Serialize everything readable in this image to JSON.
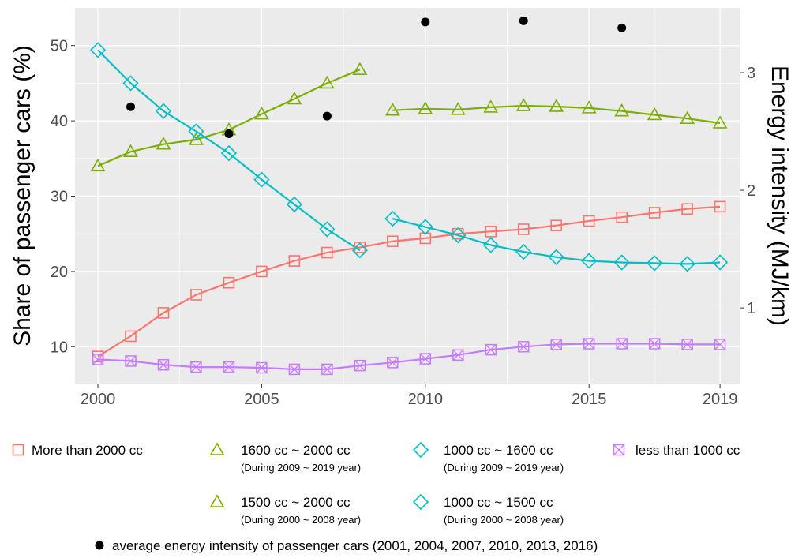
{
  "chart_data": {
    "type": "line",
    "ylabel": "Share of passenger cars (%)",
    "y2label": "Energy intensity (MJ/km)",
    "xlim": [
      1999.3,
      2019.6
    ],
    "ylim": [
      5,
      55
    ],
    "y2lim": [
      0.35,
      3.55
    ],
    "x_ticks": [
      2000,
      2005,
      2010,
      2015,
      2019
    ],
    "y_ticks": [
      10,
      20,
      30,
      40,
      50
    ],
    "y2_ticks": [
      1,
      2,
      3
    ],
    "grid": true,
    "legend_position": "bottom",
    "series": [
      {
        "name": "More than 2000 cc",
        "color": "#f8766d",
        "marker": "square",
        "x": [
          2000,
          2001,
          2002,
          2003,
          2004,
          2005,
          2006,
          2007,
          2008,
          2009,
          2010,
          2011,
          2012,
          2013,
          2014,
          2015,
          2016,
          2017,
          2018,
          2019
        ],
        "values": [
          8.7,
          11.4,
          14.5,
          16.9,
          18.5,
          20.0,
          21.4,
          22.5,
          23.2,
          24.0,
          24.4,
          25.0,
          25.3,
          25.6,
          26.1,
          26.7,
          27.2,
          27.8,
          28.3,
          28.6
        ]
      },
      {
        "name": "1500 cc ~ 2000 cc",
        "sublabel": "(During 2000 ~ 2008 year)",
        "color": "#7cae00",
        "marker": "triangle",
        "x": [
          2000,
          2001,
          2002,
          2003,
          2004,
          2005,
          2006,
          2007,
          2008
        ],
        "values": [
          34.0,
          35.9,
          36.9,
          37.5,
          38.8,
          40.9,
          42.9,
          45.0,
          46.8
        ]
      },
      {
        "name": "1600 cc ~ 2000 cc",
        "sublabel": "(During 2009 ~ 2019 year)",
        "color": "#7cae00",
        "marker": "triangle",
        "x": [
          2009,
          2010,
          2011,
          2012,
          2013,
          2014,
          2015,
          2016,
          2017,
          2018,
          2019
        ],
        "values": [
          41.4,
          41.6,
          41.5,
          41.8,
          42.0,
          41.9,
          41.7,
          41.3,
          40.8,
          40.3,
          39.7
        ]
      },
      {
        "name": "1000 cc ~ 1500 cc",
        "sublabel": "(During 2000 ~ 2008 year)",
        "color": "#00bfc4",
        "marker": "diamond",
        "x": [
          2000,
          2001,
          2002,
          2003,
          2004,
          2005,
          2006,
          2007,
          2008
        ],
        "values": [
          49.4,
          45.0,
          41.3,
          38.6,
          35.7,
          32.2,
          28.9,
          25.6,
          22.8
        ]
      },
      {
        "name": "1000 cc ~ 1600 cc",
        "sublabel": "(During 2009 ~ 2019 year)",
        "color": "#00bfc4",
        "marker": "diamond",
        "x": [
          2009,
          2010,
          2011,
          2012,
          2013,
          2014,
          2015,
          2016,
          2017,
          2018,
          2019
        ],
        "values": [
          27.0,
          25.9,
          24.8,
          23.5,
          22.6,
          21.9,
          21.4,
          21.2,
          21.1,
          21.0,
          21.2
        ]
      },
      {
        "name": "less than 1000 cc",
        "color": "#c77cff",
        "marker": "square-x",
        "x": [
          2000,
          2001,
          2002,
          2003,
          2004,
          2005,
          2006,
          2007,
          2008,
          2009,
          2010,
          2011,
          2012,
          2013,
          2014,
          2015,
          2016,
          2017,
          2018,
          2019
        ],
        "values": [
          8.3,
          8.1,
          7.6,
          7.3,
          7.3,
          7.2,
          7.0,
          7.0,
          7.5,
          7.9,
          8.4,
          8.9,
          9.6,
          10.0,
          10.3,
          10.4,
          10.4,
          10.4,
          10.3,
          10.3
        ]
      },
      {
        "name": "average energy intensity of passenger cars (2001, 2004, 2007, 2010, 2013, 2016)",
        "color": "#000000",
        "marker": "dot",
        "axis": "right",
        "x": [
          2001,
          2004,
          2007,
          2010,
          2013,
          2016
        ],
        "values": [
          2.71,
          2.48,
          2.63,
          3.43,
          3.44,
          3.38
        ]
      }
    ],
    "legend": [
      {
        "label": "More than 2000 cc",
        "sublabel": "",
        "marker": "square",
        "color": "#f8766d"
      },
      {
        "label": "1600 cc ~ 2000 cc",
        "sublabel": "(During 2009 ~ 2019 year)",
        "marker": "triangle",
        "color": "#7cae00"
      },
      {
        "label": "1000 cc ~ 1600 cc",
        "sublabel": "(During 2009 ~ 2019 year)",
        "marker": "diamond",
        "color": "#00bfc4"
      },
      {
        "label": "less than 1000 cc",
        "sublabel": "",
        "marker": "square-x",
        "color": "#c77cff"
      },
      {
        "label": "1500 cc ~ 2000 cc",
        "sublabel": "(During 2000 ~ 2008 year)",
        "marker": "triangle",
        "color": "#7cae00"
      },
      {
        "label": "1000 cc ~ 1500 cc",
        "sublabel": "(During 2000 ~ 2008 year)",
        "marker": "diamond",
        "color": "#00bfc4"
      },
      {
        "label": "average energy intensity of passenger cars (2001, 2004, 2007, 2010, 2013, 2016)",
        "sublabel": "",
        "marker": "dot",
        "color": "#000000"
      }
    ],
    "panel_background": "#ebebeb",
    "grid_color": "#ffffff"
  }
}
